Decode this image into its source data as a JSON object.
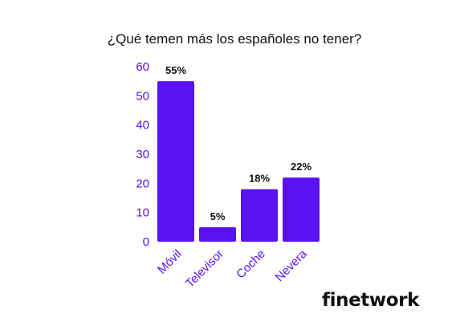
{
  "chart_data": {
    "type": "bar",
    "title": "¿Qué temen más los españoles no tener?",
    "categories": [
      "Móvil",
      "Televisor",
      "Coche",
      "Nevera"
    ],
    "values": [
      55,
      5,
      18,
      22
    ],
    "data_labels": [
      "55%",
      "5%",
      "18%",
      "22%"
    ],
    "y_ticks": [
      0,
      10,
      20,
      30,
      40,
      50,
      60
    ],
    "ylim": [
      0,
      60
    ],
    "xlabel": "",
    "ylabel": "",
    "grid": false,
    "legend": "none",
    "colors": {
      "bar": "#5a12f0",
      "tick_label": "#5a12f0",
      "title": "#111111",
      "data_label": "#111111"
    }
  },
  "brand": {
    "logo_text": "finetwork"
  }
}
